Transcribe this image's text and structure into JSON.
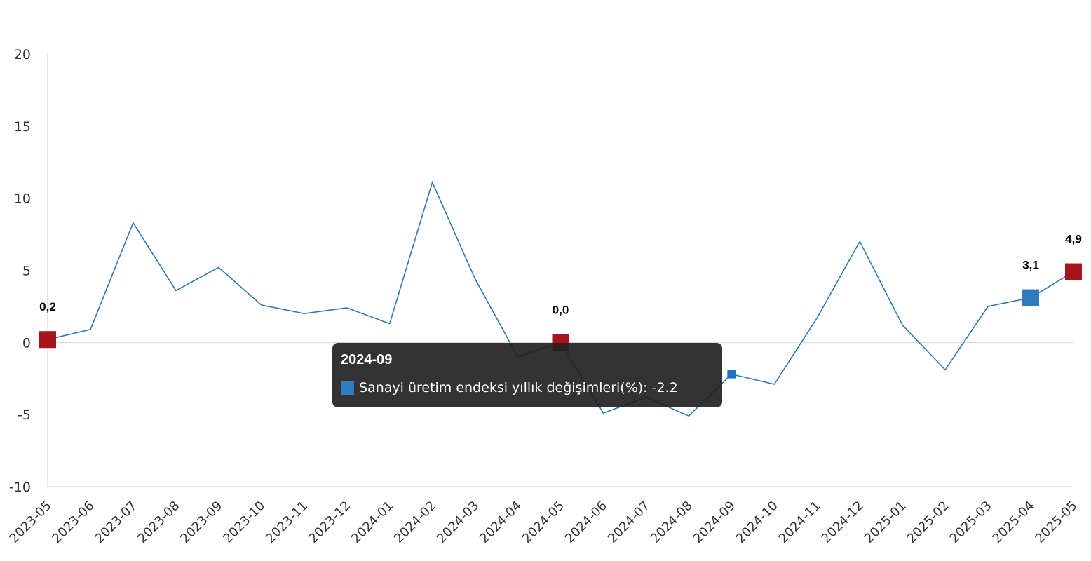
{
  "colors": {
    "line": "#2e78b7",
    "highlight_red": "#a8141c",
    "highlight_blue": "#2e7bbf",
    "axis": "#d9d9d9",
    "tick_text": "#333333",
    "tooltip_bg": "#222222"
  },
  "chart_data": {
    "type": "line",
    "title": "",
    "xlabel": "",
    "ylabel": "",
    "ylim": [
      -10,
      20
    ],
    "yticks": [
      "20",
      "15",
      "10",
      "5",
      "0",
      "-5",
      "-10"
    ],
    "categories": [
      "2023-05",
      "2023-06",
      "2023-07",
      "2023-08",
      "2023-09",
      "2023-10",
      "2023-11",
      "2023-12",
      "2024-01",
      "2024-02",
      "2024-03",
      "2024-04",
      "2024-05",
      "2024-06",
      "2024-07",
      "2024-08",
      "2024-09",
      "2024-10",
      "2024-11",
      "2024-12",
      "2025-01",
      "2025-02",
      "2025-03",
      "2025-04",
      "2025-05"
    ],
    "series": [
      {
        "name": "Sanayi üretim endeksi yıllık değişimleri(%)",
        "values": [
          0.2,
          0.9,
          8.3,
          3.6,
          5.2,
          2.6,
          2.0,
          2.4,
          1.3,
          11.1,
          4.4,
          -1.0,
          0.0,
          -4.9,
          -3.8,
          -5.1,
          -2.2,
          -2.9,
          1.7,
          7.0,
          1.2,
          -1.9,
          2.5,
          3.1,
          4.9
        ]
      }
    ],
    "highlighted_points": [
      {
        "category": "2023-05",
        "label": "0,2",
        "color": "red"
      },
      {
        "category": "2024-05",
        "label": "0,0",
        "color": "red"
      },
      {
        "category": "2025-04",
        "label": "3,1",
        "color": "blue"
      },
      {
        "category": "2025-05",
        "label": "4,9",
        "color": "red"
      }
    ],
    "grid": false,
    "legend": "none"
  },
  "tooltip": {
    "category": "2024-09",
    "series_label": "Sanayi üretim endeksi yıllık değişimleri(%): -2.2"
  }
}
